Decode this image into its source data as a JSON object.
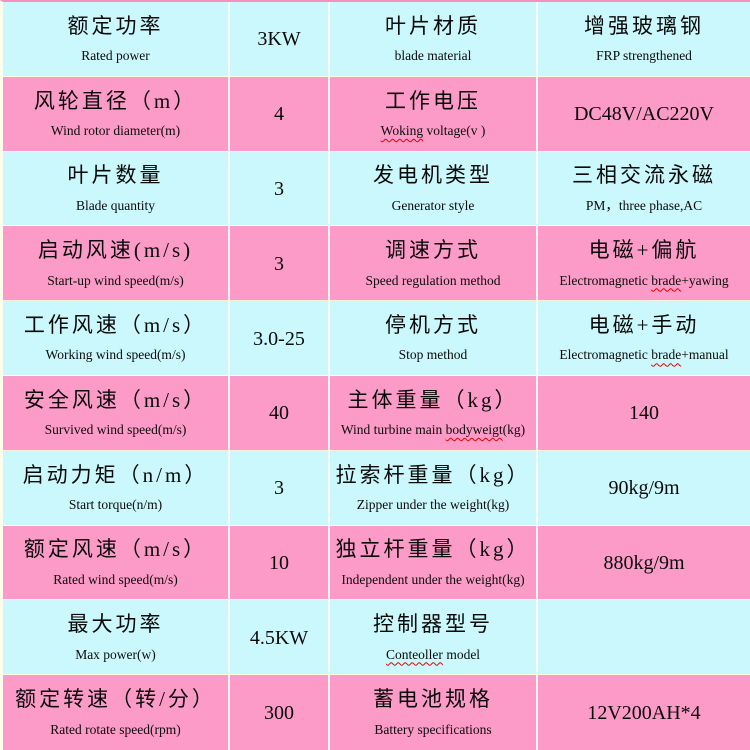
{
  "table": {
    "title_semantic": "wind turbine specification table",
    "colors": {
      "row_cyan": "#caf8fc",
      "row_pink": "#fd9bc8",
      "grid_line": "#ffffff",
      "row_separator": "#fdfdde",
      "top_edge_line": "#f98fbc",
      "left_edge_stripe": "#fffdee",
      "squiggle_red": "#e60000",
      "text": "#0a0a0a"
    },
    "rows": [
      {
        "left": {
          "zh": "额定功率",
          "en": [
            {
              "t": "Rated power"
            }
          ]
        },
        "left_value": "3KW",
        "right": {
          "zh": "叶片材质",
          "en": [
            {
              "t": "blade material"
            }
          ]
        },
        "right_value": {
          "zh": "增强玻璃钢",
          "en": [
            {
              "t": "FRP strengthened"
            }
          ],
          "value": ""
        }
      },
      {
        "left": {
          "zh": "风轮直径（m）",
          "en": [
            {
              "t": "Wind rotor diameter(m)"
            }
          ]
        },
        "left_value": "4",
        "right": {
          "zh": "工作电压",
          "en": [
            {
              "t": "Woking",
              "sq": true
            },
            {
              "t": " voltage(v )"
            }
          ]
        },
        "right_value": {
          "zh": "",
          "en": [],
          "value": "DC48V/AC220V"
        }
      },
      {
        "left": {
          "zh": "叶片数量",
          "en": [
            {
              "t": "Blade quantity"
            }
          ]
        },
        "left_value": "3",
        "right": {
          "zh": "发电机类型",
          "en": [
            {
              "t": "Generator style"
            }
          ]
        },
        "right_value": {
          "zh": "三相交流永磁",
          "en": [
            {
              "t": "PM，three phase,AC"
            }
          ],
          "value": ""
        }
      },
      {
        "left": {
          "zh": "启动风速(m/s)",
          "en": [
            {
              "t": "Start-up wind speed(m/s)"
            }
          ]
        },
        "left_value": "3",
        "right": {
          "zh": "调速方式",
          "en": [
            {
              "t": "Speed regulation method"
            }
          ]
        },
        "right_value": {
          "zh": "电磁+偏航",
          "en": [
            {
              "t": "Electromagnetic "
            },
            {
              "t": "brade",
              "sq": true
            },
            {
              "t": "+yawing"
            }
          ],
          "value": ""
        }
      },
      {
        "left": {
          "zh": "工作风速（m/s）",
          "en": [
            {
              "t": "Working wind speed(m/s)"
            }
          ]
        },
        "left_value": "3.0-25",
        "right": {
          "zh": "停机方式",
          "en": [
            {
              "t": "Stop method"
            }
          ]
        },
        "right_value": {
          "zh": "电磁+手动",
          "en": [
            {
              "t": "Electromagnetic "
            },
            {
              "t": "brade",
              "sq": true
            },
            {
              "t": "+manual"
            }
          ],
          "value": ""
        }
      },
      {
        "left": {
          "zh": "安全风速（m/s）",
          "en": [
            {
              "t": "Survived wind speed(m/s)"
            }
          ]
        },
        "left_value": "40",
        "right": {
          "zh": "主体重量（kg）",
          "en": [
            {
              "t": "Wind turbine main "
            },
            {
              "t": "bodyweigt",
              "sq": true
            },
            {
              "t": "(kg)"
            }
          ]
        },
        "right_value": {
          "zh": "",
          "en": [],
          "value": "140"
        }
      },
      {
        "left": {
          "zh": "启动力矩（n/m）",
          "en": [
            {
              "t": "Start torque(n/m)"
            }
          ]
        },
        "left_value": "3",
        "right": {
          "zh": "拉索杆重量（kg）",
          "en": [
            {
              "t": "Zipper under the weight(kg)"
            }
          ]
        },
        "right_value": {
          "zh": "",
          "en": [],
          "value": "90kg/9m"
        }
      },
      {
        "left": {
          "zh": "额定风速（m/s）",
          "en": [
            {
              "t": "Rated wind speed(m/s)"
            }
          ]
        },
        "left_value": "10",
        "right": {
          "zh": "独立杆重量（kg）",
          "en": [
            {
              "t": "Independent under the weight(kg)"
            }
          ]
        },
        "right_value": {
          "zh": "",
          "en": [],
          "value": "880kg/9m"
        }
      },
      {
        "left": {
          "zh": "最大功率",
          "en": [
            {
              "t": "Max power(w)"
            }
          ]
        },
        "left_value": "4.5KW",
        "right": {
          "zh": "控制器型号",
          "en": [
            {
              "t": "Conteoller",
              "sq": true
            },
            {
              "t": " model"
            }
          ]
        },
        "right_value": {
          "zh": "",
          "en": [],
          "value": ""
        }
      },
      {
        "left": {
          "zh": "额定转速（转/分）",
          "en": [
            {
              "t": "Rated rotate speed(rpm)"
            }
          ]
        },
        "left_value": "300",
        "right": {
          "zh": "蓄电池规格",
          "en": [
            {
              "t": "Battery specifications"
            }
          ]
        },
        "right_value": {
          "zh": "",
          "en": [],
          "value": "12V200AH*4"
        }
      }
    ]
  }
}
